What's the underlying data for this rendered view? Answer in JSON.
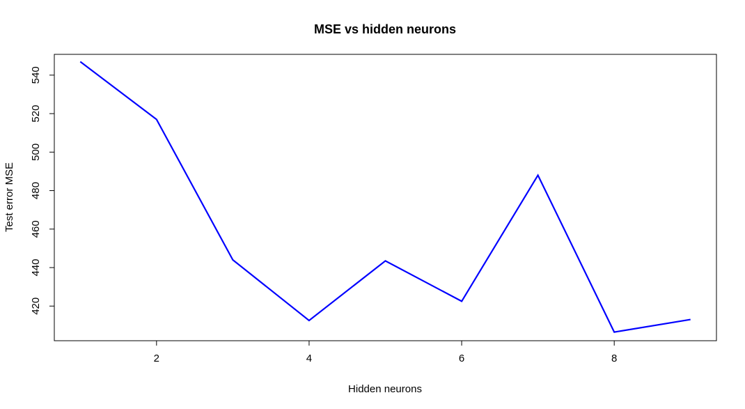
{
  "chart_data": {
    "type": "line",
    "title": "MSE vs hidden neurons",
    "xlabel": "Hidden neurons",
    "ylabel": "Test error MSE",
    "x": [
      1,
      2,
      3,
      4,
      5,
      6,
      7,
      8,
      9
    ],
    "series": [
      {
        "values": [
          547,
          517,
          444,
          412.5,
          443.5,
          422.5,
          488,
          406.5,
          413
        ]
      }
    ],
    "xlim": [
      0.66,
      9.34
    ],
    "ylim": [
      402,
      550.8
    ],
    "x_ticks": [
      2,
      4,
      6,
      8
    ],
    "y_ticks": [
      420,
      440,
      460,
      480,
      500,
      520,
      540
    ],
    "grid": false,
    "line_color": "#0000ff",
    "axis_color": "#000000"
  }
}
